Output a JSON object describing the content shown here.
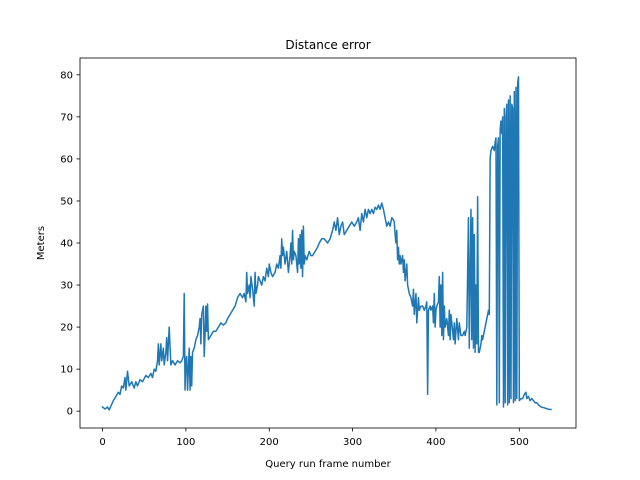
{
  "chart_data": {
    "type": "line",
    "title": "Distance error",
    "xlabel": "Query run frame number",
    "ylabel": "Meters",
    "xlim": [
      -27,
      568
    ],
    "ylim": [
      -4,
      84
    ],
    "xticks": [
      0,
      100,
      200,
      300,
      400,
      500
    ],
    "yticks": [
      0,
      10,
      20,
      30,
      40,
      50,
      60,
      70,
      80
    ],
    "grid": false,
    "legend": "none",
    "series": [
      {
        "color": "#1f77b4",
        "points": [
          [
            0,
            1
          ],
          [
            3,
            0.5
          ],
          [
            6,
            1
          ],
          [
            8,
            0.3
          ],
          [
            10,
            1.2
          ],
          [
            13,
            2.5
          ],
          [
            16,
            3.5
          ],
          [
            19,
            4.5
          ],
          [
            21,
            4
          ],
          [
            23,
            6
          ],
          [
            25,
            5.5
          ],
          [
            27,
            8
          ],
          [
            28,
            5
          ],
          [
            30,
            9.5
          ],
          [
            32,
            6
          ],
          [
            35,
            7
          ],
          [
            38,
            5.5
          ],
          [
            40,
            7
          ],
          [
            42,
            6
          ],
          [
            45,
            7.5
          ],
          [
            48,
            7
          ],
          [
            52,
            8.5
          ],
          [
            55,
            8
          ],
          [
            58,
            9
          ],
          [
            60,
            8
          ],
          [
            62,
            10
          ],
          [
            64,
            9.5
          ],
          [
            66,
            12
          ],
          [
            67,
            16
          ],
          [
            68,
            11
          ],
          [
            70,
            16
          ],
          [
            71,
            12
          ],
          [
            73,
            15
          ],
          [
            74,
            11
          ],
          [
            76,
            14
          ],
          [
            77,
            17.5
          ],
          [
            78,
            12
          ],
          [
            80,
            20
          ],
          [
            82,
            11
          ],
          [
            84,
            12
          ],
          [
            87,
            11
          ],
          [
            90,
            12
          ],
          [
            93,
            11.5
          ],
          [
            95,
            12
          ],
          [
            97,
            13
          ],
          [
            98,
            28
          ],
          [
            99,
            5
          ],
          [
            100,
            12
          ],
          [
            101,
            13
          ],
          [
            102,
            5
          ],
          [
            104,
            15
          ],
          [
            105,
            5
          ],
          [
            106,
            13
          ],
          [
            107,
            6
          ],
          [
            108,
            14
          ],
          [
            110,
            15
          ],
          [
            112,
            17
          ],
          [
            114,
            18
          ],
          [
            116,
            20
          ],
          [
            117,
            22
          ],
          [
            118,
            16
          ],
          [
            119,
            23
          ],
          [
            121,
            25
          ],
          [
            122,
            13
          ],
          [
            123,
            18
          ],
          [
            124,
            25
          ],
          [
            125,
            19
          ],
          [
            126,
            25.5
          ],
          [
            127,
            17
          ],
          [
            130,
            18
          ],
          [
            133,
            19
          ],
          [
            136,
            19
          ],
          [
            139,
            20
          ],
          [
            142,
            21
          ],
          [
            145,
            20.5
          ],
          [
            148,
            21
          ],
          [
            150,
            22
          ],
          [
            153,
            23
          ],
          [
            156,
            24
          ],
          [
            159,
            25
          ],
          [
            162,
            27
          ],
          [
            165,
            28
          ],
          [
            168,
            27
          ],
          [
            170,
            28
          ],
          [
            172,
            26
          ],
          [
            173,
            33
          ],
          [
            174,
            28
          ],
          [
            176,
            30
          ],
          [
            177,
            27
          ],
          [
            178,
            32
          ],
          [
            180,
            29
          ],
          [
            182,
            25
          ],
          [
            183,
            33
          ],
          [
            184,
            28
          ],
          [
            186,
            30
          ],
          [
            187,
            32
          ],
          [
            189,
            31
          ],
          [
            191,
            30
          ],
          [
            193,
            32
          ],
          [
            195,
            31
          ],
          [
            197,
            34
          ],
          [
            199,
            32
          ],
          [
            200,
            35
          ],
          [
            202,
            33
          ],
          [
            204,
            32
          ],
          [
            207,
            33
          ],
          [
            209,
            35
          ],
          [
            211,
            34
          ],
          [
            213,
            37
          ],
          [
            214,
            34
          ],
          [
            215,
            41
          ],
          [
            216,
            37
          ],
          [
            217,
            39
          ],
          [
            219,
            35
          ],
          [
            221,
            38
          ],
          [
            223,
            33
          ],
          [
            225,
            37
          ],
          [
            226,
            40
          ],
          [
            227,
            35
          ],
          [
            228,
            43
          ],
          [
            229,
            36
          ],
          [
            230,
            38
          ],
          [
            232,
            37
          ],
          [
            234,
            33
          ],
          [
            235,
            41
          ],
          [
            236,
            35
          ],
          [
            237,
            42
          ],
          [
            238,
            34
          ],
          [
            239,
            43
          ],
          [
            240,
            32
          ],
          [
            241,
            44
          ],
          [
            242,
            35
          ],
          [
            243,
            37
          ],
          [
            245,
            36
          ],
          [
            248,
            38
          ],
          [
            250,
            37
          ],
          [
            252,
            37
          ],
          [
            255,
            38
          ],
          [
            258,
            39
          ],
          [
            260,
            40
          ],
          [
            263,
            41
          ],
          [
            266,
            41
          ],
          [
            270,
            40
          ],
          [
            273,
            41
          ],
          [
            276,
            43
          ],
          [
            278,
            45
          ],
          [
            280,
            43
          ],
          [
            282,
            46
          ],
          [
            284,
            42
          ],
          [
            286,
            44
          ],
          [
            288,
            45
          ],
          [
            290,
            42
          ],
          [
            293,
            43
          ],
          [
            296,
            44
          ],
          [
            299,
            45
          ],
          [
            302,
            44
          ],
          [
            305,
            45
          ],
          [
            307,
            46
          ],
          [
            309,
            43
          ],
          [
            311,
            47
          ],
          [
            313,
            45
          ],
          [
            315,
            48
          ],
          [
            317,
            46
          ],
          [
            319,
            48
          ],
          [
            321,
            47
          ],
          [
            323,
            48
          ],
          [
            325,
            47
          ],
          [
            327,
            48.5
          ],
          [
            329,
            48
          ],
          [
            331,
            49
          ],
          [
            333,
            48
          ],
          [
            335,
            49.5
          ],
          [
            337,
            48
          ],
          [
            339,
            46
          ],
          [
            341,
            44
          ],
          [
            343,
            45
          ],
          [
            345,
            44
          ],
          [
            347,
            46
          ],
          [
            349,
            45.5
          ],
          [
            350,
            45
          ],
          [
            351,
            42
          ],
          [
            352,
            40
          ],
          [
            353,
            43
          ],
          [
            354,
            36
          ],
          [
            355,
            39
          ],
          [
            356,
            35
          ],
          [
            357,
            37
          ],
          [
            358,
            35
          ],
          [
            360,
            37
          ],
          [
            361,
            33
          ],
          [
            362,
            36
          ],
          [
            363,
            31
          ],
          [
            365,
            35
          ],
          [
            366,
            30
          ],
          [
            368,
            28
          ],
          [
            370,
            27
          ],
          [
            372,
            25
          ],
          [
            373,
            29
          ],
          [
            374,
            23
          ],
          [
            376,
            28
          ],
          [
            377,
            21
          ],
          [
            379,
            27
          ],
          [
            380,
            24
          ],
          [
            382,
            25
          ],
          [
            384,
            25
          ],
          [
            386,
            24
          ],
          [
            388,
            25
          ],
          [
            389,
            26
          ],
          [
            390,
            4
          ],
          [
            391,
            24
          ],
          [
            393,
            25
          ],
          [
            394,
            24
          ],
          [
            396,
            25
          ],
          [
            397,
            21
          ],
          [
            398,
            28
          ],
          [
            399,
            20
          ],
          [
            400,
            24
          ],
          [
            401,
            25
          ],
          [
            403,
            26
          ],
          [
            404,
            32
          ],
          [
            405,
            20
          ],
          [
            406,
            30
          ],
          [
            407,
            18
          ],
          [
            408,
            33
          ],
          [
            409,
            17
          ],
          [
            410,
            25
          ],
          [
            411,
            20
          ],
          [
            413,
            22
          ],
          [
            415,
            18
          ],
          [
            416,
            24
          ],
          [
            417,
            17
          ],
          [
            418,
            23
          ],
          [
            420,
            19
          ],
          [
            421,
            17
          ],
          [
            422,
            21
          ],
          [
            423,
            16
          ],
          [
            425,
            22
          ],
          [
            427,
            17
          ],
          [
            428,
            21
          ],
          [
            430,
            18
          ],
          [
            432,
            18
          ],
          [
            434,
            19
          ],
          [
            435,
            18
          ],
          [
            436,
            19
          ],
          [
            437,
            20
          ],
          [
            439,
            46
          ],
          [
            440,
            15
          ],
          [
            442,
            48
          ],
          [
            443,
            17
          ],
          [
            444,
            46
          ],
          [
            445,
            15
          ],
          [
            446,
            42
          ],
          [
            447,
            14
          ],
          [
            448,
            30
          ],
          [
            449,
            16
          ],
          [
            450,
            51
          ],
          [
            451,
            14
          ],
          [
            452,
            14
          ],
          [
            454,
            16
          ],
          [
            455,
            18
          ],
          [
            456,
            17
          ],
          [
            458,
            19
          ],
          [
            459,
            20
          ],
          [
            461,
            22
          ],
          [
            462,
            23
          ],
          [
            463,
            24
          ],
          [
            464,
            23
          ],
          [
            465,
            60
          ],
          [
            466,
            62
          ],
          [
            468,
            63
          ],
          [
            470,
            62
          ],
          [
            471,
            64
          ],
          [
            472,
            65
          ],
          [
            473,
            1.5
          ],
          [
            474,
            63
          ],
          [
            475,
            65
          ],
          [
            476,
            2
          ],
          [
            477,
            67
          ],
          [
            478,
            69
          ],
          [
            479,
            66
          ],
          [
            480,
            70
          ],
          [
            481,
            1
          ],
          [
            482,
            72
          ],
          [
            483,
            2
          ],
          [
            484,
            70
          ],
          [
            485,
            73
          ],
          [
            486,
            1.5
          ],
          [
            487,
            74
          ],
          [
            488,
            2
          ],
          [
            489,
            75
          ],
          [
            490,
            3
          ],
          [
            491,
            73
          ],
          [
            492,
            72
          ],
          [
            493,
            2
          ],
          [
            494,
            76
          ],
          [
            495,
            2.5
          ],
          [
            496,
            77
          ],
          [
            497,
            3
          ],
          [
            498,
            78
          ],
          [
            499,
            79.5
          ],
          [
            500,
            2.5
          ],
          [
            502,
            3
          ],
          [
            504,
            3
          ],
          [
            506,
            4
          ],
          [
            508,
            4.5
          ],
          [
            509,
            3
          ],
          [
            511,
            3.5
          ],
          [
            513,
            2.5
          ],
          [
            515,
            3
          ],
          [
            517,
            2.5
          ],
          [
            519,
            2
          ],
          [
            521,
            2
          ],
          [
            523,
            1.5
          ],
          [
            526,
            1
          ],
          [
            530,
            0.8
          ],
          [
            534,
            0.5
          ],
          [
            538,
            0.4
          ]
        ]
      }
    ]
  }
}
